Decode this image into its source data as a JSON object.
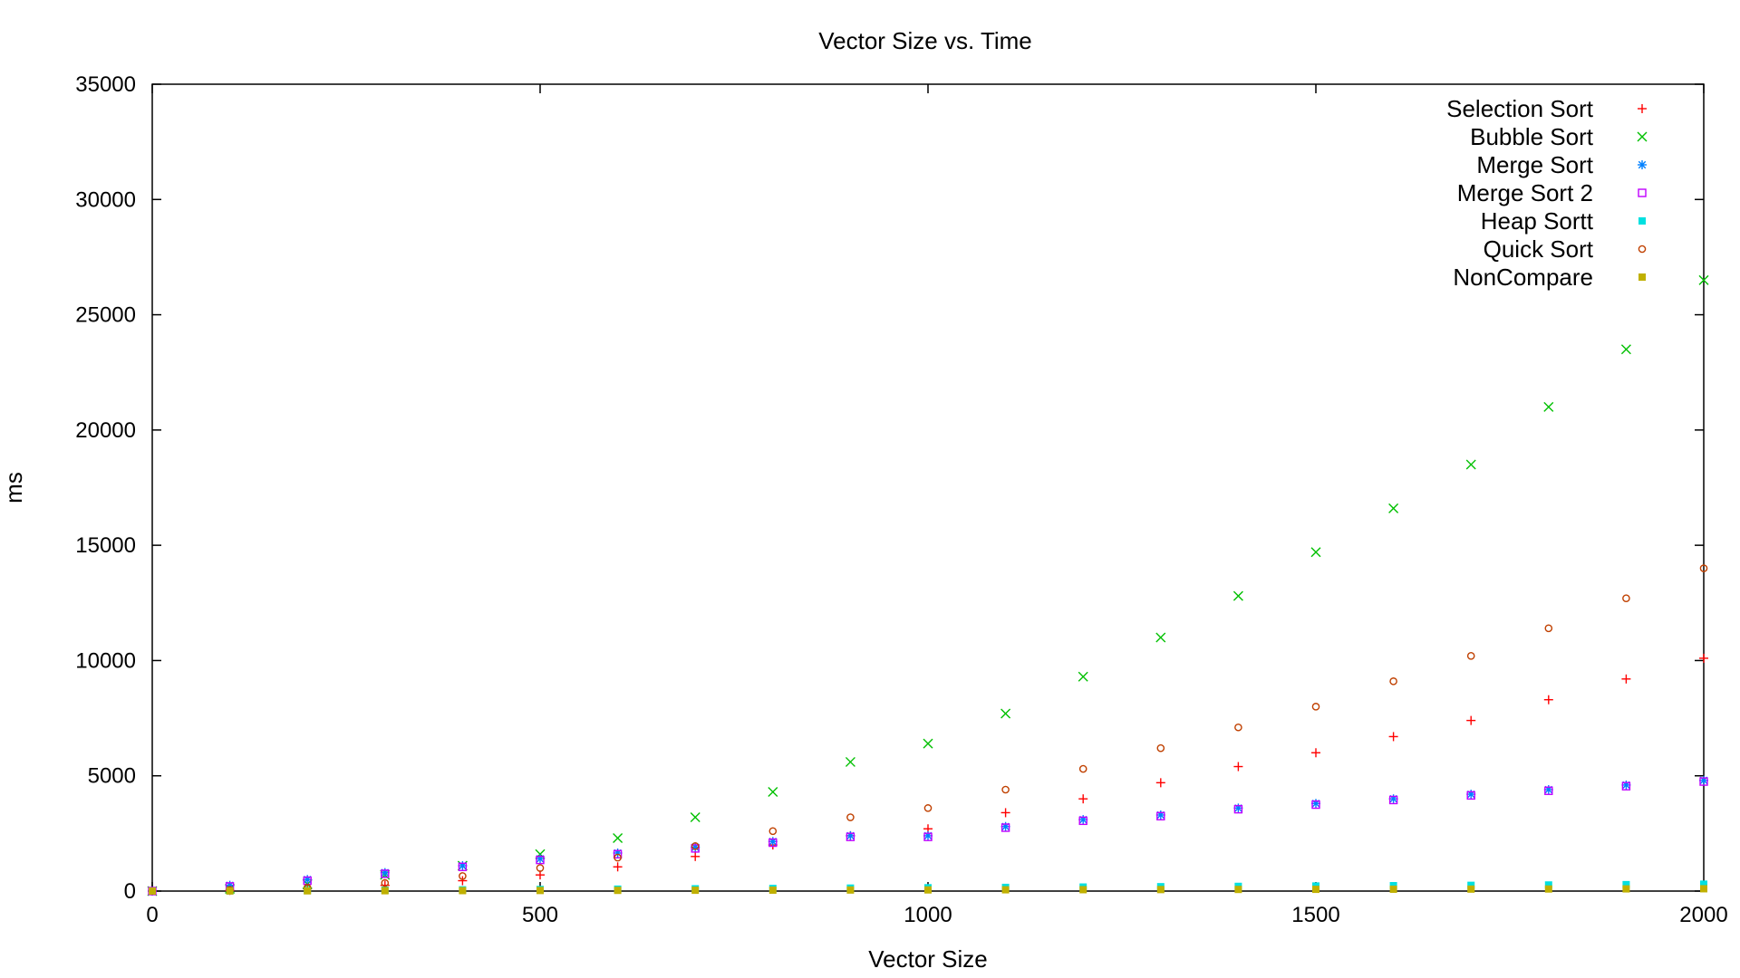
{
  "chart_data": {
    "type": "scatter",
    "title": "Vector Size vs. Time",
    "xlabel": "Vector Size",
    "ylabel": "ms",
    "xlim": [
      0,
      2000
    ],
    "ylim": [
      0,
      35000
    ],
    "x_ticks": [
      "0",
      "500",
      "1000",
      "1500",
      "2000"
    ],
    "y_ticks": [
      "0",
      "5000",
      "10000",
      "15000",
      "20000",
      "25000",
      "30000",
      "35000"
    ],
    "grid": false,
    "legend_position": "top-right",
    "series": [
      {
        "name": "Selection Sort",
        "color": "#ff0000",
        "marker": "plus",
        "x": [
          0,
          100,
          200,
          300,
          400,
          500,
          600,
          700,
          800,
          900,
          1000,
          1100,
          1200,
          1300,
          1400,
          1500,
          1600,
          1700,
          1800,
          1900,
          2000
        ],
        "y": [
          0,
          30,
          100,
          250,
          450,
          700,
          1050,
          1500,
          2000,
          2400,
          2700,
          3400,
          4000,
          4700,
          5400,
          6000,
          6700,
          7400,
          8300,
          9200,
          10100
        ]
      },
      {
        "name": "Bubble Sort",
        "color": "#00c000",
        "marker": "cross",
        "x": [
          0,
          100,
          200,
          300,
          400,
          500,
          600,
          700,
          800,
          900,
          1000,
          1100,
          1200,
          1300,
          1400,
          1500,
          1600,
          1700,
          1800,
          1900,
          2000
        ],
        "y": [
          0,
          100,
          300,
          700,
          1100,
          1600,
          2300,
          3200,
          4300,
          5600,
          6400,
          7700,
          9300,
          11000,
          12800,
          14700,
          16600,
          18500,
          21000,
          23500,
          26500
        ]
      },
      {
        "name": "Merge Sort",
        "color": "#0080ff",
        "marker": "star",
        "x": [
          0,
          100,
          200,
          300,
          400,
          500,
          600,
          700,
          800,
          900,
          1000,
          1100,
          1200,
          1300,
          1400,
          1500,
          1600,
          1700,
          1800,
          1900,
          2000
        ],
        "y": [
          0,
          250,
          500,
          800,
          1100,
          1400,
          1650,
          1900,
          2150,
          2400,
          2400,
          2800,
          3100,
          3300,
          3600,
          3800,
          4000,
          4200,
          4400,
          4600,
          4800
        ]
      },
      {
        "name": "Merge Sort 2",
        "color": "#c000ff",
        "marker": "square",
        "x": [
          0,
          100,
          200,
          300,
          400,
          500,
          600,
          700,
          800,
          900,
          1000,
          1100,
          1200,
          1300,
          1400,
          1500,
          1600,
          1700,
          1800,
          1900,
          2000
        ],
        "y": [
          0,
          200,
          450,
          750,
          1050,
          1350,
          1600,
          1850,
          2100,
          2350,
          2350,
          2750,
          3050,
          3250,
          3550,
          3750,
          3950,
          4150,
          4350,
          4550,
          4750
        ]
      },
      {
        "name": "Heap Sortt",
        "color": "#00e0e0",
        "marker": "filled-square",
        "x": [
          0,
          100,
          200,
          300,
          400,
          500,
          600,
          700,
          800,
          900,
          1000,
          1100,
          1200,
          1300,
          1400,
          1500,
          1600,
          1700,
          1800,
          1900,
          2000
        ],
        "y": [
          0,
          10,
          25,
          40,
          55,
          70,
          85,
          100,
          115,
          130,
          145,
          160,
          175,
          190,
          205,
          220,
          235,
          250,
          265,
          280,
          300
        ]
      },
      {
        "name": "Quick Sort",
        "color": "#c04000",
        "marker": "circle",
        "x": [
          0,
          100,
          200,
          300,
          400,
          500,
          600,
          700,
          800,
          900,
          1000,
          1100,
          1200,
          1300,
          1400,
          1500,
          1600,
          1700,
          1800,
          1900,
          2000
        ],
        "y": [
          0,
          50,
          150,
          350,
          650,
          1000,
          1450,
          1950,
          2600,
          3200,
          3600,
          4400,
          5300,
          6200,
          7100,
          8000,
          9100,
          10200,
          11400,
          12700,
          14000
        ]
      },
      {
        "name": "NonCompare",
        "color": "#c0b000",
        "marker": "filled-square",
        "x": [
          0,
          100,
          200,
          300,
          400,
          500,
          600,
          700,
          800,
          900,
          1000,
          1100,
          1200,
          1300,
          1400,
          1500,
          1600,
          1700,
          1800,
          1900,
          2000
        ],
        "y": [
          0,
          5,
          10,
          15,
          20,
          25,
          30,
          35,
          40,
          45,
          50,
          55,
          60,
          65,
          70,
          75,
          80,
          85,
          90,
          95,
          100
        ]
      }
    ]
  }
}
